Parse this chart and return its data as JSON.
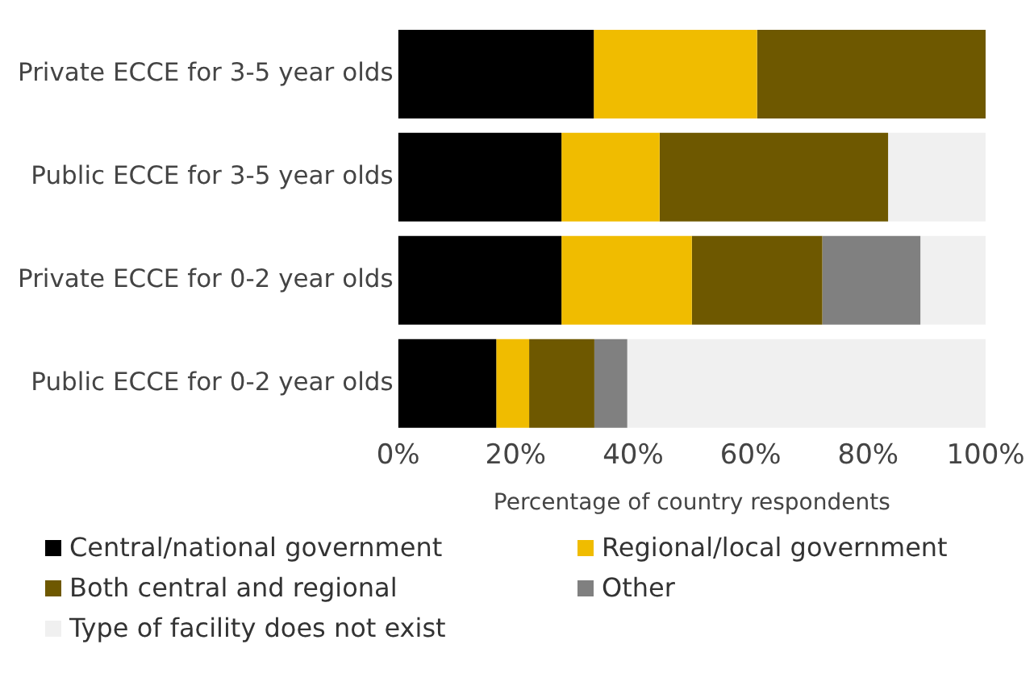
{
  "chart_data": {
    "type": "bar",
    "orientation": "horizontal",
    "stacked": true,
    "categories": [
      "Private ECCE for 3-5 year olds",
      "Public ECCE for 3-5 year olds",
      "Private ECCE for 0-2 year olds",
      "Public ECCE for 0-2 year olds"
    ],
    "series": [
      {
        "name": "Central/national government",
        "color": "#000000",
        "values": [
          33.3,
          27.8,
          27.8,
          16.7
        ]
      },
      {
        "name": "Regional/local government",
        "color": "#f0bc00",
        "values": [
          27.8,
          16.7,
          22.2,
          5.6
        ]
      },
      {
        "name": "Both central and regional",
        "color": "#6e5800",
        "values": [
          38.9,
          38.9,
          22.2,
          11.1
        ]
      },
      {
        "name": "Other",
        "color": "#808080",
        "values": [
          0,
          0,
          16.7,
          5.6
        ]
      },
      {
        "name": "Type of facility does not exist",
        "color": "#f0f0f0",
        "values": [
          0,
          16.7,
          11.1,
          61.1
        ]
      }
    ],
    "xlim": [
      0,
      100
    ],
    "xticks": [
      {
        "value": 0,
        "label": "0%"
      },
      {
        "value": 20,
        "label": "20%"
      },
      {
        "value": 40,
        "label": "40%"
      },
      {
        "value": 60,
        "label": "60%"
      },
      {
        "value": 80,
        "label": "80%"
      },
      {
        "value": 100,
        "label": "100%"
      }
    ],
    "xlabel": "Percentage of country respondents",
    "grid": false,
    "legend": "bottom"
  }
}
